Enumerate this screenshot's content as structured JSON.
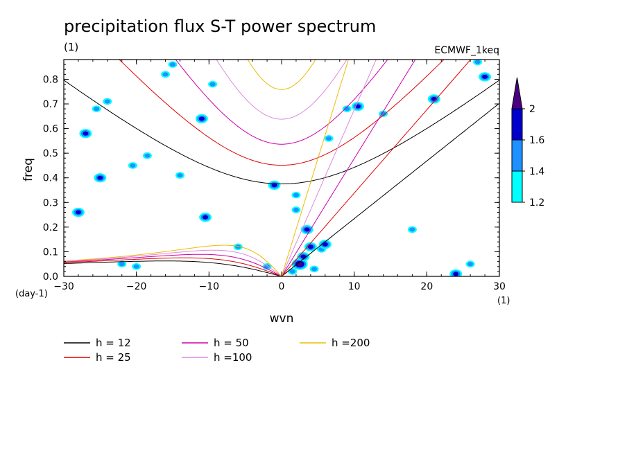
{
  "chart_data": {
    "type": "heatmap",
    "title": "precipitation flux S-T power spectrum",
    "subtitle_left": "(1)",
    "subtitle_right": "ECMWF_1keq",
    "xlabel": "wvn",
    "ylabel": "freq",
    "x_unit": "(1)",
    "y_unit": "(day-1)",
    "xlim": [
      -30,
      30
    ],
    "ylim": [
      0,
      0.88
    ],
    "x_ticks": [
      -30,
      -20,
      -10,
      0,
      10,
      20,
      30
    ],
    "x_tick_labels": [
      "−30",
      "−20",
      "−10",
      "0",
      "10",
      "20",
      "30"
    ],
    "y_ticks": [
      0,
      0.1,
      0.2,
      0.3,
      0.4,
      0.5,
      0.6,
      0.7,
      0.8
    ],
    "y_tick_labels": [
      "0.0",
      "0.1",
      "0.2",
      "0.3",
      "0.4",
      "0.5",
      "0.6",
      "0.7",
      "0.8"
    ],
    "colorbar": {
      "levels": [
        1.2,
        1.4,
        1.6,
        2
      ],
      "level_labels": [
        "1.2",
        "1.4",
        "1.6",
        "2"
      ],
      "colors": [
        "#00ffff",
        "#1e90ff",
        "#0000cd",
        "#4b0082"
      ]
    },
    "contour_cells": [
      {
        "x": 2.5,
        "y": 0.05,
        "level": 3
      },
      {
        "x": 3.0,
        "y": 0.08,
        "level": 2
      },
      {
        "x": 4.0,
        "y": 0.12,
        "level": 2
      },
      {
        "x": 3.5,
        "y": 0.19,
        "level": 2
      },
      {
        "x": 5.5,
        "y": 0.11,
        "level": 1
      },
      {
        "x": 6.0,
        "y": 0.13,
        "level": 2
      },
      {
        "x": 1.5,
        "y": 0.02,
        "level": 1
      },
      {
        "x": 4.5,
        "y": 0.03,
        "level": 1
      },
      {
        "x": -2.0,
        "y": 0.04,
        "level": 1
      },
      {
        "x": -1.0,
        "y": 0.37,
        "level": 2
      },
      {
        "x": 2.0,
        "y": 0.33,
        "level": 1
      },
      {
        "x": 2.0,
        "y": 0.27,
        "level": 1
      },
      {
        "x": -10.5,
        "y": 0.24,
        "level": 2
      },
      {
        "x": -25.0,
        "y": 0.4,
        "level": 2
      },
      {
        "x": -28.0,
        "y": 0.26,
        "level": 2
      },
      {
        "x": -24.0,
        "y": 0.71,
        "level": 1
      },
      {
        "x": -25.5,
        "y": 0.68,
        "level": 1
      },
      {
        "x": -11.0,
        "y": 0.64,
        "level": 2
      },
      {
        "x": -9.5,
        "y": 0.78,
        "level": 1
      },
      {
        "x": -16.0,
        "y": 0.82,
        "level": 1
      },
      {
        "x": -18.5,
        "y": 0.49,
        "level": 1
      },
      {
        "x": -27.0,
        "y": 0.58,
        "level": 2
      },
      {
        "x": -20.0,
        "y": 0.04,
        "level": 1
      },
      {
        "x": -22.0,
        "y": 0.05,
        "level": 1
      },
      {
        "x": 21.0,
        "y": 0.72,
        "level": 2
      },
      {
        "x": 24.0,
        "y": 0.01,
        "level": 2
      },
      {
        "x": 26.0,
        "y": 0.05,
        "level": 1
      },
      {
        "x": 28.0,
        "y": 0.81,
        "level": 2
      },
      {
        "x": 27.0,
        "y": 0.87,
        "level": 1
      },
      {
        "x": 18.0,
        "y": 0.19,
        "level": 1
      },
      {
        "x": 6.5,
        "y": 0.56,
        "level": 1
      },
      {
        "x": 9.0,
        "y": 0.68,
        "level": 1
      },
      {
        "x": 10.5,
        "y": 0.69,
        "level": 2
      },
      {
        "x": -20.5,
        "y": 0.45,
        "level": 1
      },
      {
        "x": -14.0,
        "y": 0.41,
        "level": 1
      },
      {
        "x": -6.0,
        "y": 0.12,
        "level": 1
      },
      {
        "x": -15.0,
        "y": 0.86,
        "level": 1
      },
      {
        "x": 14.0,
        "y": 0.66,
        "level": 1
      }
    ],
    "legend_placement": "bottom",
    "series": [
      {
        "name": "h = 12",
        "h": 12,
        "color": "#000000"
      },
      {
        "name": "h = 25",
        "h": 25,
        "color": "#e00000"
      },
      {
        "name": "h = 50",
        "h": 50,
        "color": "#cc00aa"
      },
      {
        "name": "h =100",
        "h": 100,
        "color": "#dd88dd"
      },
      {
        "name": "h =200",
        "h": 200,
        "color": "#eebb00"
      }
    ]
  }
}
